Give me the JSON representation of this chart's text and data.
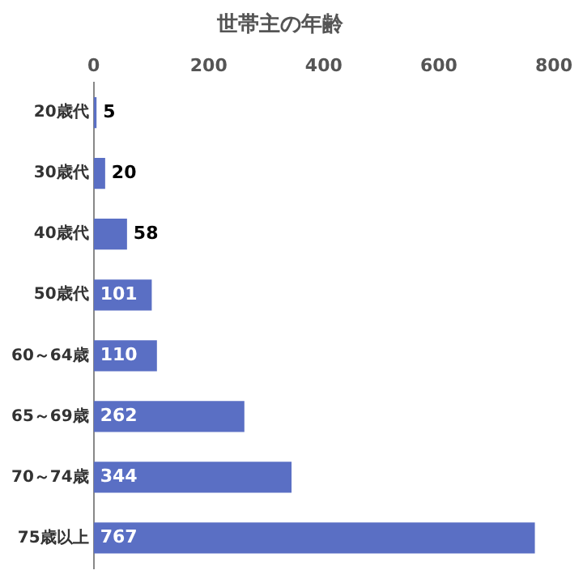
{
  "chart_data": {
    "type": "bar",
    "orientation": "horizontal",
    "title": "世帯主の年齢",
    "categories": [
      "20歳代",
      "30歳代",
      "40歳代",
      "50歳代",
      "60～64歳",
      "65～69歳",
      "70～74歳",
      "75歳以上"
    ],
    "values": [
      5,
      20,
      58,
      101,
      110,
      262,
      344,
      767
    ],
    "color": "#5a6fc4",
    "xlim": [
      0,
      800
    ],
    "xticks": [
      0,
      200,
      400,
      600,
      800
    ],
    "grid": false,
    "legend": false,
    "data_labels": true
  }
}
